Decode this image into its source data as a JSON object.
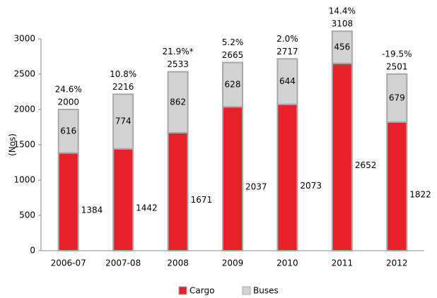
{
  "chart_data": {
    "type": "stacked_bar",
    "ylabel": "(Nos)",
    "categories": [
      "2006-07",
      "2007-08",
      "2008",
      "2009",
      "2010",
      "2011",
      "2012"
    ],
    "series": [
      {
        "name": "Cargo",
        "color": "#e8202a",
        "values": [
          1384,
          1442,
          1671,
          2037,
          2073,
          2652,
          1822
        ]
      },
      {
        "name": "Buses",
        "color": "#d2d2d4",
        "values": [
          616,
          774,
          862,
          628,
          644,
          456,
          679
        ]
      }
    ],
    "totals": [
      2000,
      2216,
      2533,
      2665,
      2717,
      3108,
      2501
    ],
    "growth_labels": [
      "24.6%",
      "10.8%",
      "21.9%*",
      "5.2%",
      "2.0%",
      "14.4%",
      "-19.5%"
    ],
    "ylim": [
      0,
      3000
    ],
    "yticks": [
      0,
      500,
      1000,
      1500,
      2000,
      2500,
      3000
    ],
    "legend": "bottom"
  }
}
